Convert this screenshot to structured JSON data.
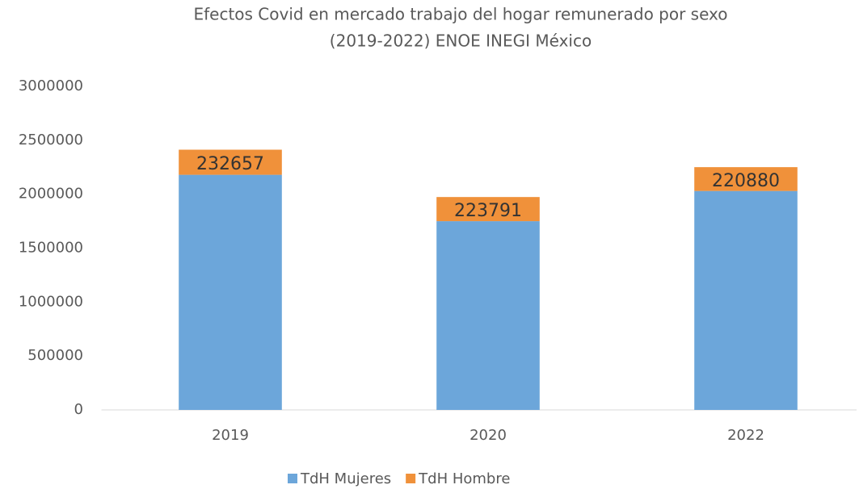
{
  "chart_data": {
    "type": "stacked_bar",
    "title": [
      "Efectos Covid en mercado trabajo del hogar remunerado por sexo",
      "(2019-2022)  ENOE INEGI México"
    ],
    "categories": [
      "2019",
      "2020",
      "2022"
    ],
    "series": [
      {
        "name": "TdH Mujeres",
        "color": "#6ca6da",
        "values": [
          2180000,
          1750000,
          2030000
        ],
        "data_labels": false
      },
      {
        "name": "TdH Hombre",
        "color": "#f0913a",
        "values": [
          232657,
          223791,
          220880
        ],
        "data_labels": true
      }
    ],
    "ylim": [
      0,
      3000000
    ],
    "yticks": [
      0,
      500000,
      1000000,
      1500000,
      2000000,
      2500000,
      3000000
    ],
    "grid": false,
    "legend": "bottom"
  }
}
